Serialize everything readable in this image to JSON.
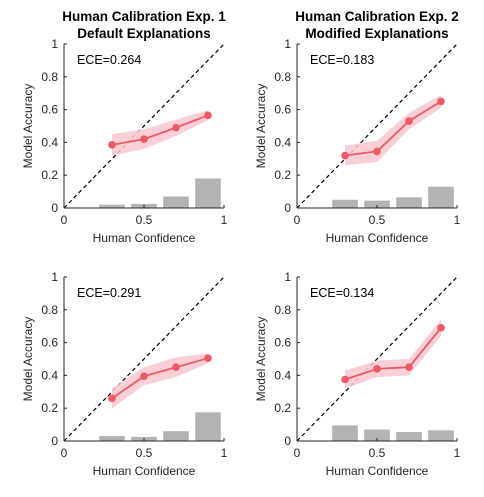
{
  "chart_data": [
    {
      "type": "line",
      "title": [
        "Human Calibration Exp. 1",
        "Default Explanations"
      ],
      "xlabel": "Human Confidence",
      "ylabel": "Model Accuracy",
      "xlim": [
        0,
        1
      ],
      "ylim": [
        0,
        1
      ],
      "xticks": [
        "0",
        "0.5",
        "1"
      ],
      "yticks": [
        "0",
        "0.2",
        "0.4",
        "0.6",
        "0.8",
        "1"
      ],
      "annotation": "ECE=0.264",
      "series": [
        {
          "x": [
            0.3,
            0.5,
            0.7,
            0.9
          ],
          "y": [
            0.385,
            0.42,
            0.49,
            0.565
          ],
          "lower": [
            0.32,
            0.36,
            0.44,
            0.535
          ],
          "upper": [
            0.45,
            0.48,
            0.54,
            0.595
          ]
        }
      ],
      "bars": {
        "x": [
          0.3,
          0.5,
          0.7,
          0.9
        ],
        "values": [
          0.02,
          0.025,
          0.07,
          0.18
        ]
      },
      "diagonal": true,
      "colors": {
        "line": "#ee5a66",
        "band": "#f9c8cf",
        "bar": "#b3b3b3"
      }
    },
    {
      "type": "line",
      "title": [
        "Human Calibration Exp. 2",
        "Modified Explanations"
      ],
      "xlabel": "Human Confidence",
      "ylabel": "Model Accuracy",
      "xlim": [
        0,
        1
      ],
      "ylim": [
        0,
        1
      ],
      "xticks": [
        "0",
        "0.5",
        "1"
      ],
      "yticks": [
        "0",
        "0.2",
        "0.4",
        "0.6",
        "0.8",
        "1"
      ],
      "annotation": "ECE=0.183",
      "series": [
        {
          "x": [
            0.3,
            0.5,
            0.7,
            0.9
          ],
          "y": [
            0.32,
            0.345,
            0.53,
            0.65
          ],
          "lower": [
            0.26,
            0.28,
            0.48,
            0.61
          ],
          "upper": [
            0.38,
            0.41,
            0.58,
            0.69
          ]
        }
      ],
      "bars": {
        "x": [
          0.3,
          0.5,
          0.7,
          0.9
        ],
        "values": [
          0.05,
          0.045,
          0.065,
          0.13
        ]
      },
      "diagonal": true,
      "colors": {
        "line": "#ee5a66",
        "band": "#f9c8cf",
        "bar": "#b3b3b3"
      }
    },
    {
      "type": "line",
      "title": [
        "",
        ""
      ],
      "xlabel": "Human Confidence",
      "ylabel": "Model Accuracy",
      "xlim": [
        0,
        1
      ],
      "ylim": [
        0,
        1
      ],
      "xticks": [
        "0",
        "0.5",
        "1"
      ],
      "yticks": [
        "0",
        "0.2",
        "0.4",
        "0.6",
        "0.8",
        "1"
      ],
      "annotation": "ECE=0.291",
      "series": [
        {
          "x": [
            0.3,
            0.5,
            0.7,
            0.9
          ],
          "y": [
            0.26,
            0.395,
            0.45,
            0.505
          ],
          "lower": [
            0.2,
            0.34,
            0.39,
            0.475
          ],
          "upper": [
            0.32,
            0.45,
            0.51,
            0.535
          ]
        }
      ],
      "bars": {
        "x": [
          0.3,
          0.5,
          0.7,
          0.9
        ],
        "values": [
          0.03,
          0.025,
          0.06,
          0.175
        ]
      },
      "diagonal": true,
      "colors": {
        "line": "#ee5a66",
        "band": "#f9c8cf",
        "bar": "#b3b3b3"
      }
    },
    {
      "type": "line",
      "title": [
        "",
        ""
      ],
      "xlabel": "Human Confidence",
      "ylabel": "Model Accuracy",
      "xlim": [
        0,
        1
      ],
      "ylim": [
        0,
        1
      ],
      "xticks": [
        "0",
        "0.5",
        "1"
      ],
      "yticks": [
        "0",
        "0.2",
        "0.4",
        "0.6",
        "0.8",
        "1"
      ],
      "annotation": "ECE=0.134",
      "series": [
        {
          "x": [
            0.3,
            0.5,
            0.7,
            0.9
          ],
          "y": [
            0.375,
            0.44,
            0.45,
            0.69
          ],
          "lower": [
            0.32,
            0.39,
            0.4,
            0.64
          ],
          "upper": [
            0.43,
            0.49,
            0.5,
            0.74
          ]
        }
      ],
      "bars": {
        "x": [
          0.3,
          0.5,
          0.7,
          0.9
        ],
        "values": [
          0.095,
          0.07,
          0.055,
          0.065
        ]
      },
      "diagonal": true,
      "colors": {
        "line": "#ee5a66",
        "band": "#f9c8cf",
        "bar": "#b3b3b3"
      }
    }
  ]
}
